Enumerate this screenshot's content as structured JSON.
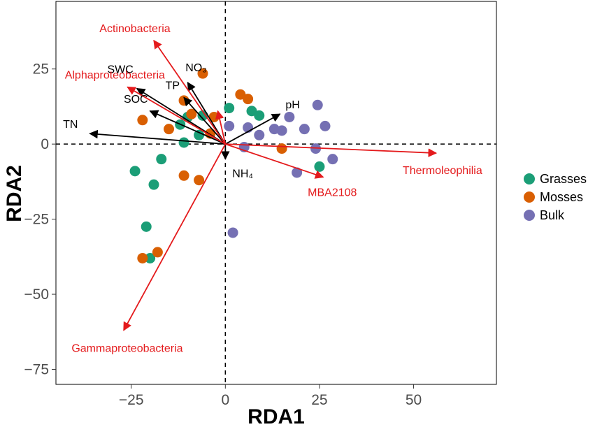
{
  "chart_data": {
    "type": "scatter",
    "title": "",
    "xlabel": "RDA1",
    "ylabel": "RDA2",
    "xlim": [
      -45,
      72
    ],
    "ylim": [
      -80,
      47.5
    ],
    "xticks": [
      -25,
      0,
      25,
      50
    ],
    "yticks": [
      25,
      0,
      -25,
      -50,
      -75
    ],
    "xtick_labels": [
      "−25",
      "0",
      "25",
      "50"
    ],
    "ytick_labels": [
      "25",
      "0",
      "−25",
      "−50",
      "−75"
    ],
    "grid": false,
    "reference_lines": {
      "x": 0,
      "y": 0,
      "style": "dashed"
    },
    "legend": {
      "position": "right",
      "entries": [
        {
          "name": "Grasses",
          "color": "#1B9E77"
        },
        {
          "name": "Mosses",
          "color": "#D95F02"
        },
        {
          "name": "Bulk",
          "color": "#7570B3"
        }
      ]
    },
    "series": [
      {
        "name": "Grasses",
        "color": "#1B9E77",
        "points": [
          [
            -24,
            -9
          ],
          [
            -21,
            -27.5
          ],
          [
            -20,
            -38
          ],
          [
            -19,
            -13.5
          ],
          [
            -17,
            -5
          ],
          [
            -12,
            6.5
          ],
          [
            -11,
            0.5
          ],
          [
            -10,
            9
          ],
          [
            -7,
            3
          ],
          [
            -6,
            9.5
          ],
          [
            1,
            12
          ],
          [
            7,
            11
          ],
          [
            9,
            9.5
          ],
          [
            25,
            -7.5
          ]
        ]
      },
      {
        "name": "Mosses",
        "color": "#D95F02",
        "points": [
          [
            -22,
            8
          ],
          [
            -22,
            -38
          ],
          [
            -18,
            -36
          ],
          [
            -15,
            5
          ],
          [
            -11,
            14.5
          ],
          [
            -11,
            -10.5
          ],
          [
            -9,
            10
          ],
          [
            -7,
            -12
          ],
          [
            -6,
            23.5
          ],
          [
            -4,
            3.5
          ],
          [
            -3,
            9
          ],
          [
            4,
            16.5
          ],
          [
            6,
            15
          ],
          [
            15,
            -1.5
          ]
        ]
      },
      {
        "name": "Bulk",
        "color": "#7570B3",
        "points": [
          [
            1,
            6
          ],
          [
            2,
            -29.5
          ],
          [
            5,
            -1
          ],
          [
            6,
            5.5
          ],
          [
            9,
            3
          ],
          [
            13,
            5
          ],
          [
            15,
            4.5
          ],
          [
            17,
            9
          ],
          [
            19,
            -9.5
          ],
          [
            21,
            5
          ],
          [
            24,
            -1.5
          ],
          [
            24.5,
            13
          ],
          [
            26.5,
            6
          ],
          [
            28.5,
            -5
          ]
        ]
      }
    ],
    "vectors": [
      {
        "label": "TN",
        "x": -36,
        "y": 3.5,
        "color": "#000000"
      },
      {
        "label": "SOC",
        "x": -20,
        "y": 11,
        "color": "#000000"
      },
      {
        "label": "SWC",
        "x": -23.5,
        "y": 18.5,
        "color": "#000000"
      },
      {
        "label": "TP",
        "x": -11,
        "y": 15.5,
        "color": "#000000"
      },
      {
        "label": "NO₃",
        "x": -10,
        "y": 20.5,
        "color": "#000000"
      },
      {
        "label": "pH",
        "x": 14.5,
        "y": 10,
        "color": "#000000"
      },
      {
        "label": "NH₄",
        "x": 0,
        "y": -5,
        "color": "#000000"
      },
      {
        "label": "Actinobacteria",
        "x": -19,
        "y": 34.5,
        "color": "#E41A1C"
      },
      {
        "label": "Alphaproteobacteria",
        "x": -26,
        "y": 19,
        "color": "#E41A1C"
      },
      {
        "label": "Thermoleophilia",
        "x": 56,
        "y": -3,
        "color": "#E41A1C"
      },
      {
        "label": "MBA2108",
        "x": 26,
        "y": -11,
        "color": "#E41A1C"
      },
      {
        "label": "Gammaproteobacteria",
        "x": -27,
        "y": -62,
        "color": "#E41A1C"
      },
      {
        "label": "",
        "x": -2,
        "y": 11,
        "color": "#E41A1C"
      }
    ]
  }
}
